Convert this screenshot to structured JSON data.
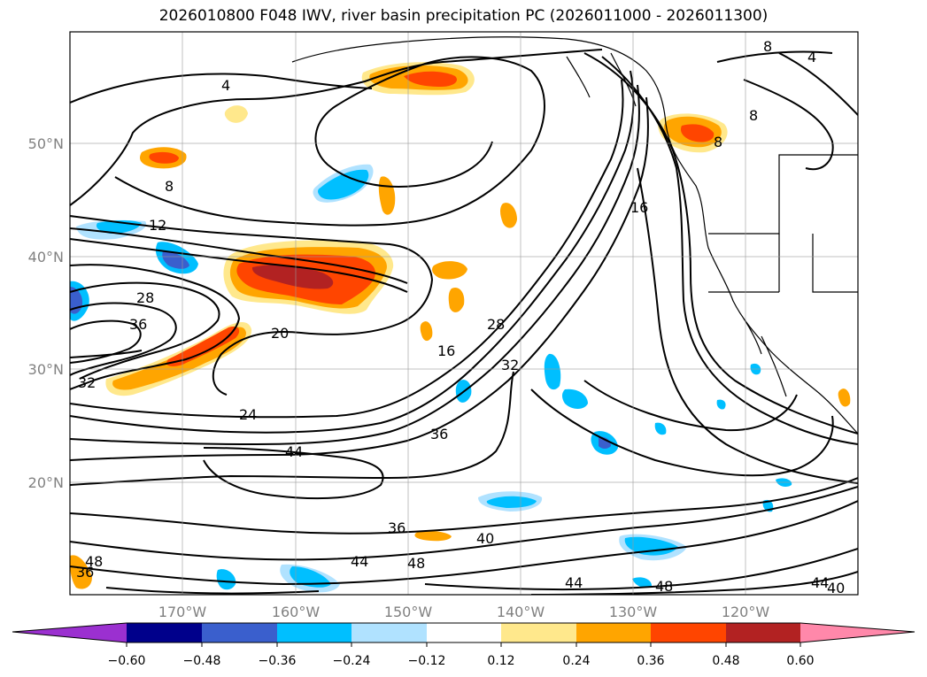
{
  "title": "2026010800 F048 IWV, river basin precipitation PC (2026011000 - 2026011300)",
  "lon_labels": [
    "170°W",
    "160°W",
    "150°W",
    "140°W",
    "130°W",
    "120°W"
  ],
  "lat_labels": [
    "50°N",
    "40°N",
    "30°N",
    "20°N"
  ],
  "colorbar": {
    "colors": [
      "#9b30d0",
      "#00008b",
      "#3a5fcd",
      "#00bfff",
      "#b0e2ff",
      "#ffffff",
      "#ffe88c",
      "#ffa500",
      "#ff4500",
      "#b22222",
      "#ff88aa"
    ],
    "labels": [
      "−0.60",
      "−0.48",
      "−0.36",
      "−0.24",
      "−0.12",
      "0.12",
      "0.24",
      "0.36",
      "0.48",
      "0.60"
    ]
  },
  "contour_labels": [
    {
      "text": "4"
    },
    {
      "text": "4"
    },
    {
      "text": "8"
    },
    {
      "text": "8"
    },
    {
      "text": "8"
    },
    {
      "text": "8"
    },
    {
      "text": "12"
    },
    {
      "text": "16"
    },
    {
      "text": "16"
    },
    {
      "text": "20"
    },
    {
      "text": "24"
    },
    {
      "text": "28"
    },
    {
      "text": "28"
    },
    {
      "text": "32"
    },
    {
      "text": "32"
    },
    {
      "text": "36"
    },
    {
      "text": "36"
    },
    {
      "text": "36"
    },
    {
      "text": "36"
    },
    {
      "text": "40"
    },
    {
      "text": "44"
    },
    {
      "text": "44"
    },
    {
      "text": "44"
    },
    {
      "text": "44"
    },
    {
      "text": "48"
    },
    {
      "text": "48"
    },
    {
      "text": "48"
    },
    {
      "text": "40"
    }
  ]
}
